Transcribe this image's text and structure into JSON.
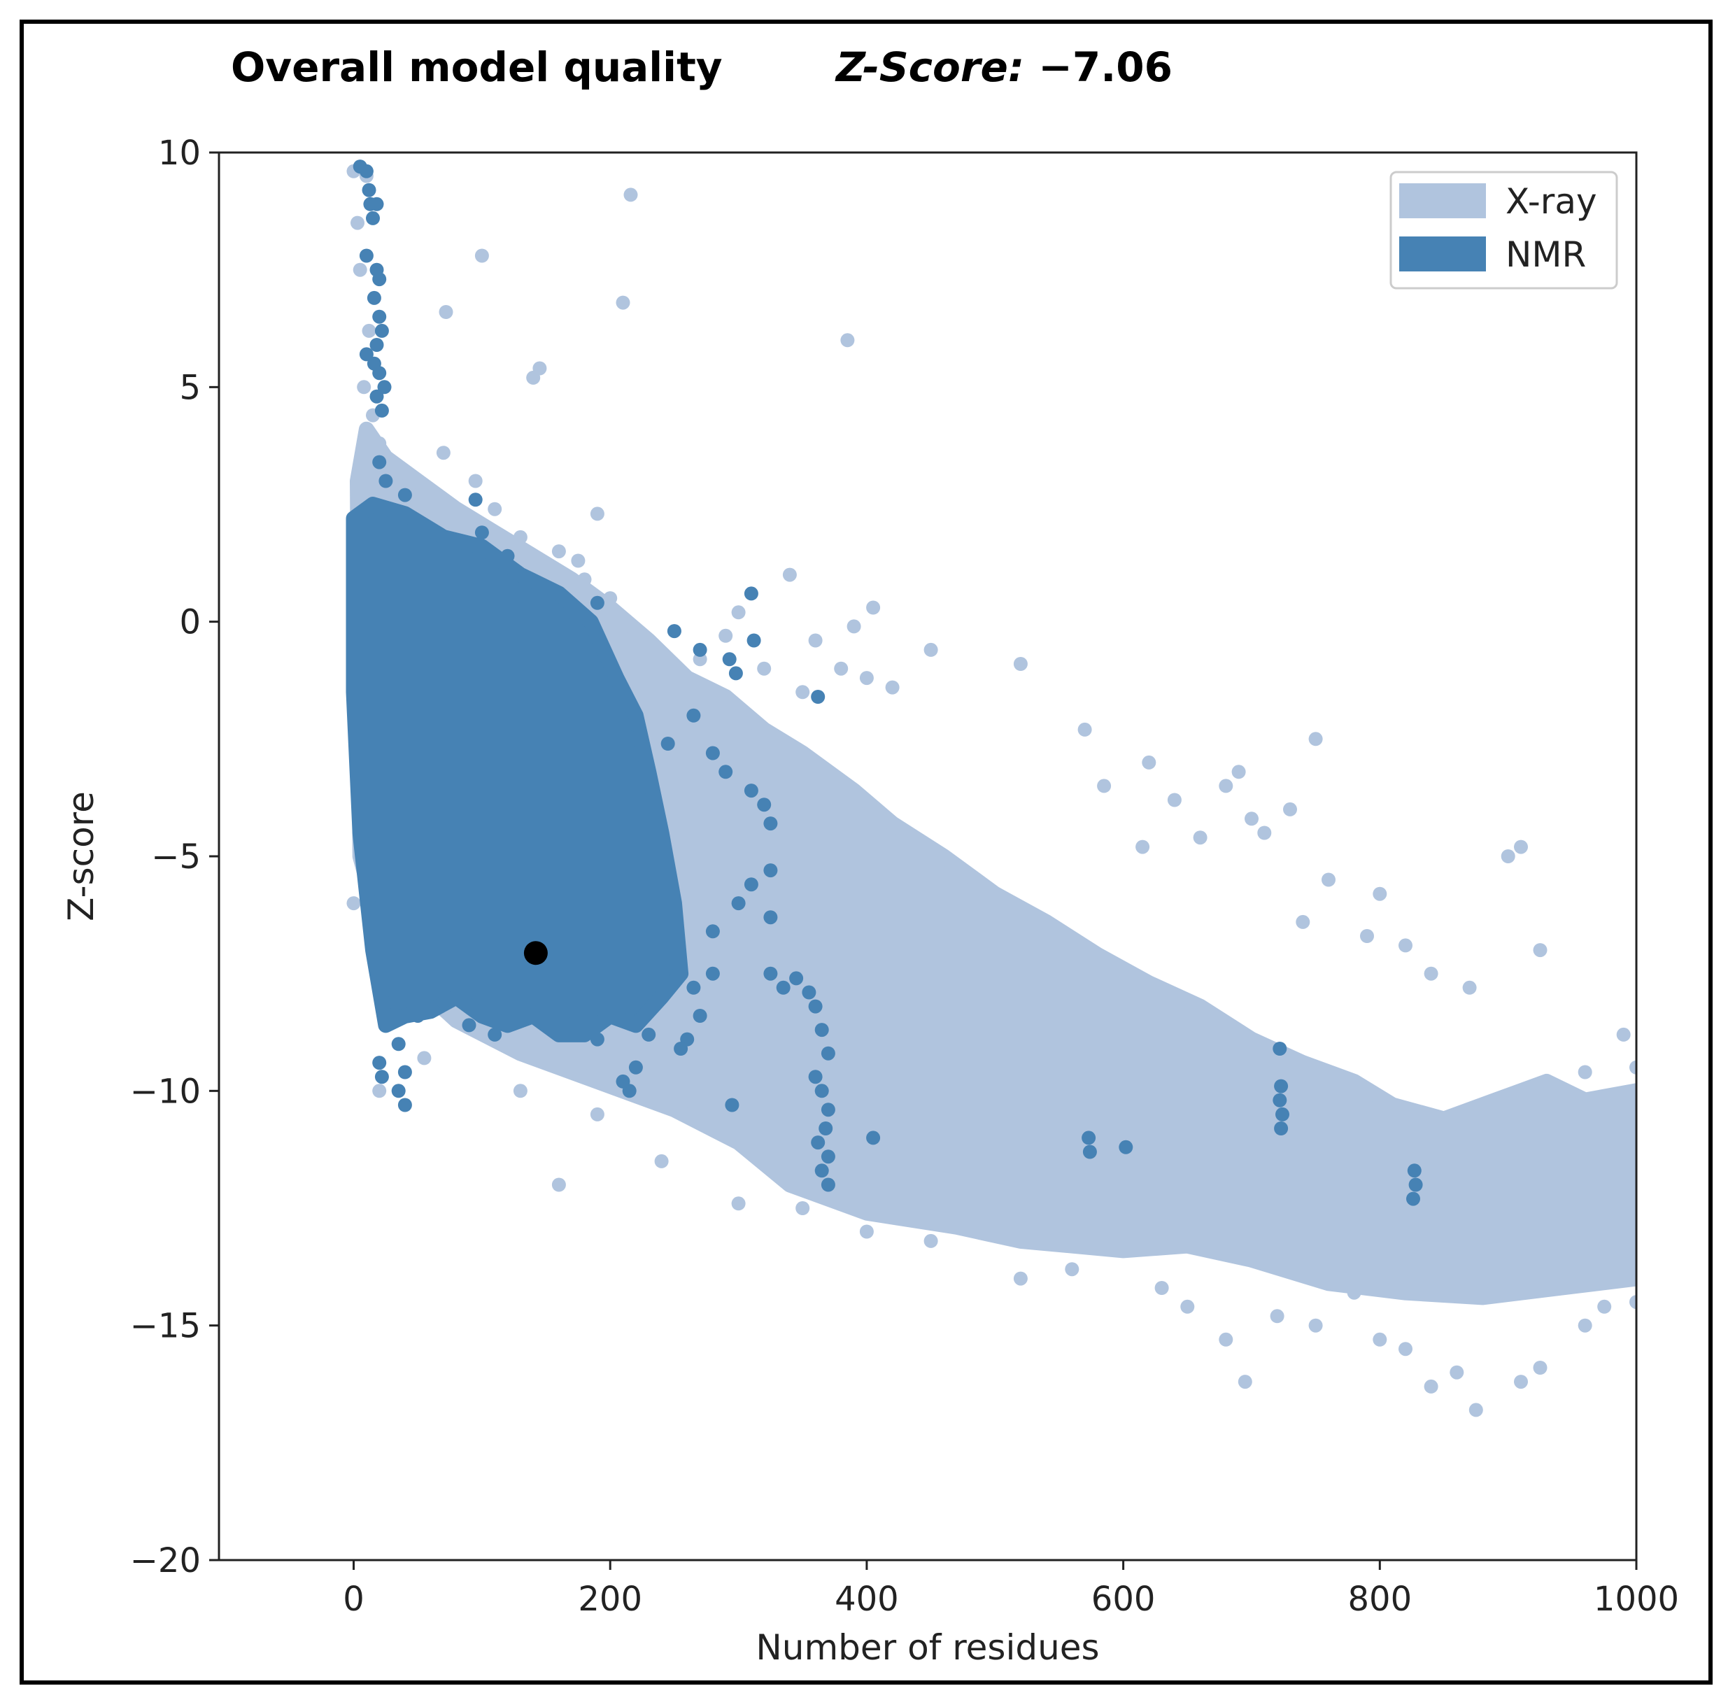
{
  "chart_data": {
    "type": "scatter",
    "title": "Overall model quality",
    "subtitle_label": "Z-Score:",
    "subtitle_value": "−7.06",
    "xlabel": "Number of residues",
    "ylabel": "Z-score",
    "xlim": [
      -105,
      1000
    ],
    "ylim": [
      -20,
      10
    ],
    "x_ticks": [
      0,
      200,
      400,
      600,
      800,
      1000
    ],
    "x_tick_labels": [
      "0",
      "200",
      "400",
      "600",
      "800",
      "1000"
    ],
    "y_ticks": [
      10,
      5,
      0,
      -5,
      -10,
      -15,
      -20
    ],
    "y_tick_labels": [
      "10",
      "5",
      "0",
      "−5",
      "−10",
      "−15",
      "−20"
    ],
    "grid": false,
    "legend_position": "top-right",
    "colors": {
      "xray": "#b0c4de",
      "nmr": "#4682b4",
      "highlight": "#000000"
    },
    "series": [
      {
        "name": "X-ray",
        "color": "#b0c4de",
        "points": [
          [
            0,
            9.6
          ],
          [
            3,
            8.5
          ],
          [
            10,
            9.5
          ],
          [
            5,
            7.5
          ],
          [
            12,
            6.2
          ],
          [
            8,
            5.0
          ],
          [
            15,
            4.4
          ],
          [
            20,
            3.8
          ],
          [
            30,
            3.0
          ],
          [
            40,
            2.8
          ],
          [
            60,
            2.6
          ],
          [
            70,
            3.6
          ],
          [
            80,
            2.2
          ],
          [
            100,
            7.8
          ],
          [
            72,
            6.6
          ],
          [
            95,
            3.0
          ],
          [
            110,
            2.4
          ],
          [
            130,
            1.8
          ],
          [
            140,
            5.2
          ],
          [
            145,
            5.4
          ],
          [
            150,
            1.0
          ],
          [
            160,
            1.5
          ],
          [
            175,
            1.3
          ],
          [
            180,
            0.9
          ],
          [
            190,
            2.3
          ],
          [
            200,
            0.5
          ],
          [
            210,
            6.8
          ],
          [
            216,
            9.1
          ],
          [
            230,
            -0.5
          ],
          [
            240,
            -0.8
          ],
          [
            250,
            -0.2
          ],
          [
            270,
            -0.8
          ],
          [
            290,
            -0.3
          ],
          [
            300,
            0.2
          ],
          [
            320,
            -1.0
          ],
          [
            340,
            1.0
          ],
          [
            350,
            -1.5
          ],
          [
            360,
            -0.4
          ],
          [
            385,
            6.0
          ],
          [
            380,
            -1.0
          ],
          [
            390,
            -0.1
          ],
          [
            400,
            -1.2
          ],
          [
            405,
            0.3
          ],
          [
            420,
            -1.4
          ],
          [
            450,
            -0.6
          ],
          [
            520,
            -0.9
          ],
          [
            570,
            -2.3
          ],
          [
            620,
            -3.0
          ],
          [
            680,
            -3.5
          ],
          [
            750,
            -2.5
          ],
          [
            660,
            -4.6
          ],
          [
            700,
            -4.2
          ],
          [
            710,
            -4.5
          ],
          [
            730,
            -4.0
          ],
          [
            760,
            -5.5
          ],
          [
            800,
            -5.8
          ],
          [
            820,
            -6.9
          ],
          [
            840,
            -7.5
          ],
          [
            870,
            -7.8
          ],
          [
            900,
            -5.0
          ],
          [
            910,
            -4.8
          ],
          [
            925,
            -7.0
          ],
          [
            960,
            -9.6
          ],
          [
            990,
            -8.8
          ],
          [
            1000,
            -9.5
          ],
          [
            520,
            -14.0
          ],
          [
            560,
            -13.8
          ],
          [
            630,
            -14.2
          ],
          [
            650,
            -14.6
          ],
          [
            680,
            -15.3
          ],
          [
            695,
            -16.2
          ],
          [
            720,
            -14.8
          ],
          [
            750,
            -15.0
          ],
          [
            780,
            -14.3
          ],
          [
            800,
            -15.3
          ],
          [
            820,
            -15.5
          ],
          [
            840,
            -16.3
          ],
          [
            860,
            -16.0
          ],
          [
            875,
            -16.8
          ],
          [
            910,
            -16.2
          ],
          [
            925,
            -15.9
          ],
          [
            960,
            -15.0
          ],
          [
            975,
            -14.6
          ],
          [
            1000,
            -14.5
          ],
          [
            300,
            -12.4
          ],
          [
            350,
            -12.5
          ],
          [
            400,
            -13.0
          ],
          [
            450,
            -13.2
          ],
          [
            160,
            -12.0
          ],
          [
            130,
            -10.0
          ],
          [
            240,
            -11.5
          ],
          [
            190,
            -10.5
          ],
          [
            55,
            -9.3
          ],
          [
            20,
            -10.0
          ],
          [
            0,
            -6.0
          ],
          [
            5,
            -3.5
          ],
          [
            5,
            -2.0
          ],
          [
            430,
            -6.2
          ],
          [
            470,
            -7.0
          ],
          [
            610,
            -7.9
          ],
          [
            615,
            -4.8
          ],
          [
            585,
            -3.5
          ],
          [
            640,
            -3.8
          ],
          [
            690,
            -3.2
          ],
          [
            740,
            -6.4
          ],
          [
            790,
            -6.7
          ],
          [
            855,
            -11.7
          ],
          [
            940,
            -12.0
          ],
          [
            985,
            -13.1
          ],
          [
            880,
            -13.5
          ]
        ],
        "body": [
          [
            5,
            -5
          ],
          [
            15,
            -6
          ],
          [
            40,
            -7.5
          ],
          [
            80,
            -8.5
          ],
          [
            130,
            -9.2
          ],
          [
            190,
            -9.8
          ],
          [
            250,
            -10.4
          ],
          [
            300,
            -11.1
          ],
          [
            340,
            -12.0
          ],
          [
            400,
            -12.6
          ],
          [
            470,
            -12.9
          ],
          [
            520,
            -13.2
          ],
          [
            600,
            -13.4
          ],
          [
            650,
            -13.3
          ],
          [
            700,
            -13.6
          ],
          [
            760,
            -14.1
          ],
          [
            820,
            -14.3
          ],
          [
            880,
            -14.4
          ],
          [
            940,
            -14.2
          ],
          [
            1000,
            -14.0
          ],
          [
            1000,
            -10.0
          ],
          [
            960,
            -10.2
          ],
          [
            930,
            -9.8
          ],
          [
            890,
            -10.2
          ],
          [
            850,
            -10.6
          ],
          [
            810,
            -10.3
          ],
          [
            780,
            -9.8
          ],
          [
            740,
            -9.4
          ],
          [
            700,
            -8.9
          ],
          [
            660,
            -8.2
          ],
          [
            620,
            -7.7
          ],
          [
            580,
            -7.1
          ],
          [
            540,
            -6.4
          ],
          [
            500,
            -5.8
          ],
          [
            460,
            -5.0
          ],
          [
            420,
            -4.3
          ],
          [
            390,
            -3.6
          ],
          [
            350,
            -2.8
          ],
          [
            320,
            -2.3
          ],
          [
            290,
            -1.6
          ],
          [
            260,
            -1.2
          ],
          [
            230,
            -0.4
          ],
          [
            200,
            0.3
          ],
          [
            170,
            0.9
          ],
          [
            140,
            1.4
          ],
          [
            110,
            1.9
          ],
          [
            80,
            2.4
          ],
          [
            50,
            3.0
          ],
          [
            25,
            3.5
          ],
          [
            10,
            4.1
          ],
          [
            3,
            3.0
          ]
        ]
      },
      {
        "name": "NMR",
        "color": "#4682b4",
        "points": [
          [
            5,
            9.7
          ],
          [
            10,
            9.6
          ],
          [
            12,
            9.2
          ],
          [
            13,
            8.9
          ],
          [
            15,
            8.6
          ],
          [
            18,
            8.9
          ],
          [
            10,
            7.8
          ],
          [
            18,
            7.5
          ],
          [
            20,
            7.3
          ],
          [
            16,
            6.9
          ],
          [
            20,
            6.5
          ],
          [
            22,
            6.2
          ],
          [
            18,
            5.9
          ],
          [
            10,
            5.7
          ],
          [
            16,
            5.5
          ],
          [
            20,
            5.3
          ],
          [
            24,
            5.0
          ],
          [
            18,
            4.8
          ],
          [
            22,
            4.5
          ],
          [
            20,
            3.4
          ],
          [
            25,
            3.0
          ],
          [
            40,
            2.7
          ],
          [
            50,
            2.0
          ],
          [
            95,
            2.6
          ],
          [
            100,
            1.9
          ],
          [
            120,
            1.4
          ],
          [
            150,
            0.6
          ],
          [
            170,
            0.2
          ],
          [
            190,
            0.4
          ],
          [
            250,
            -0.2
          ],
          [
            270,
            -0.6
          ],
          [
            293,
            -0.8
          ],
          [
            298,
            -1.1
          ],
          [
            310,
            0.6
          ],
          [
            312,
            -0.4
          ],
          [
            362,
            -1.6
          ],
          [
            220,
            -2.2
          ],
          [
            245,
            -2.6
          ],
          [
            265,
            -2.0
          ],
          [
            280,
            -2.8
          ],
          [
            290,
            -3.2
          ],
          [
            310,
            -3.6
          ],
          [
            320,
            -3.9
          ],
          [
            325,
            -4.3
          ],
          [
            325,
            -5.3
          ],
          [
            325,
            -6.3
          ],
          [
            310,
            -5.6
          ],
          [
            300,
            -6.0
          ],
          [
            280,
            -6.6
          ],
          [
            280,
            -7.5
          ],
          [
            265,
            -7.8
          ],
          [
            270,
            -8.4
          ],
          [
            260,
            -8.9
          ],
          [
            255,
            -9.1
          ],
          [
            230,
            -8.8
          ],
          [
            220,
            -9.5
          ],
          [
            215,
            -10.0
          ],
          [
            210,
            -9.8
          ],
          [
            190,
            -8.9
          ],
          [
            170,
            -8.3
          ],
          [
            150,
            -8.6
          ],
          [
            130,
            -8.3
          ],
          [
            110,
            -8.8
          ],
          [
            90,
            -8.6
          ],
          [
            70,
            -8.1
          ],
          [
            50,
            -8.4
          ],
          [
            35,
            -9.0
          ],
          [
            20,
            -9.4
          ],
          [
            40,
            -9.6
          ],
          [
            35,
            -10.0
          ],
          [
            40,
            -10.3
          ],
          [
            22,
            -9.7
          ],
          [
            325,
            -7.5
          ],
          [
            335,
            -7.8
          ],
          [
            345,
            -7.6
          ],
          [
            355,
            -7.9
          ],
          [
            360,
            -8.2
          ],
          [
            365,
            -8.7
          ],
          [
            370,
            -9.2
          ],
          [
            360,
            -9.7
          ],
          [
            365,
            -10.0
          ],
          [
            370,
            -10.4
          ],
          [
            368,
            -10.8
          ],
          [
            362,
            -11.1
          ],
          [
            370,
            -11.4
          ],
          [
            365,
            -11.7
          ],
          [
            370,
            -12.0
          ],
          [
            295,
            -10.3
          ],
          [
            405,
            -11.0
          ],
          [
            573,
            -11.0
          ],
          [
            574,
            -11.3
          ],
          [
            602,
            -11.2
          ],
          [
            722,
            -9.1
          ],
          [
            723,
            -9.9
          ],
          [
            722,
            -10.2
          ],
          [
            724,
            -10.5
          ],
          [
            723,
            -10.8
          ],
          [
            827,
            -11.7
          ],
          [
            828,
            -12.0
          ],
          [
            826,
            -12.3
          ]
        ],
        "body": [
          [
            0,
            2.2
          ],
          [
            15,
            2.5
          ],
          [
            40,
            2.3
          ],
          [
            70,
            1.8
          ],
          [
            100,
            1.6
          ],
          [
            130,
            1.0
          ],
          [
            160,
            0.6
          ],
          [
            185,
            0.0
          ],
          [
            205,
            -1.2
          ],
          [
            220,
            -2.0
          ],
          [
            230,
            -3.2
          ],
          [
            240,
            -4.5
          ],
          [
            250,
            -6.0
          ],
          [
            255,
            -7.5
          ],
          [
            240,
            -8.0
          ],
          [
            220,
            -8.6
          ],
          [
            200,
            -8.4
          ],
          [
            180,
            -8.8
          ],
          [
            160,
            -8.8
          ],
          [
            140,
            -8.4
          ],
          [
            120,
            -8.6
          ],
          [
            100,
            -8.4
          ],
          [
            80,
            -8.0
          ],
          [
            60,
            -8.3
          ],
          [
            40,
            -8.4
          ],
          [
            25,
            -8.6
          ],
          [
            15,
            -7.0
          ],
          [
            5,
            -4.5
          ],
          [
            0,
            -1.5
          ]
        ]
      },
      {
        "name": "",
        "color": "#000000",
        "points": [
          [
            142,
            -7.06
          ]
        ]
      }
    ]
  }
}
